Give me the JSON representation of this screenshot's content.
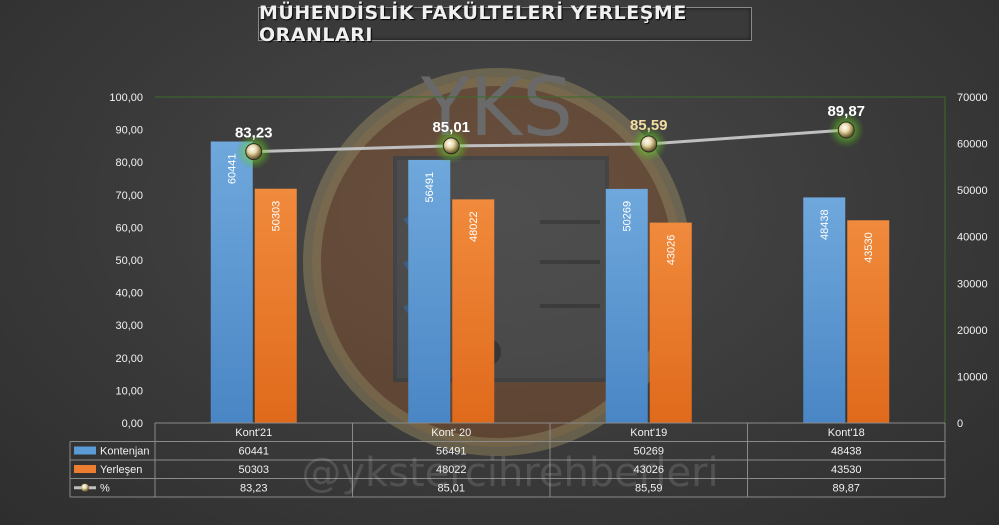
{
  "title": "MÜHENDİSLİK FAKÜLTELERİ YERLEŞME ORANLARI",
  "watermark": {
    "logo_text": "YKS",
    "handle": "@ykstercihrehberleri"
  },
  "colors": {
    "kontenjan": "#5b9bd5",
    "yerlesen": "#ed7d31",
    "line": "#bfbfbf",
    "text": "#f2f2f2",
    "grid": "#5a5a5a"
  },
  "chart_data": {
    "type": "bar",
    "categories": [
      "Kont'21",
      "Kont' 20",
      "Kont'19",
      "Kont'18"
    ],
    "series": [
      {
        "name": "Kontenjan",
        "axis": "right",
        "values": [
          60441,
          56491,
          50269,
          48438
        ],
        "labels": [
          "60441",
          "56491",
          "50269",
          "48438"
        ]
      },
      {
        "name": "Yerleşen",
        "axis": "right",
        "values": [
          50303,
          48022,
          43026,
          43530
        ],
        "labels": [
          "50303",
          "48022",
          "43026",
          "43530"
        ]
      },
      {
        "name": "%",
        "axis": "left",
        "type": "line",
        "values": [
          83.23,
          85.01,
          85.59,
          89.87
        ],
        "labels": [
          "83,23",
          "85,01",
          "85,59",
          "89,87"
        ]
      }
    ],
    "left_axis": {
      "ylim": [
        0,
        100
      ],
      "ticks": [
        "0,00",
        "10,00",
        "20,00",
        "30,00",
        "40,00",
        "50,00",
        "60,00",
        "70,00",
        "80,00",
        "90,00",
        "100,00"
      ]
    },
    "right_axis": {
      "ylim": [
        0,
        70000
      ],
      "ticks": [
        "0",
        "10000",
        "20000",
        "30000",
        "40000",
        "50000",
        "60000",
        "70000"
      ]
    },
    "data_table": true
  }
}
